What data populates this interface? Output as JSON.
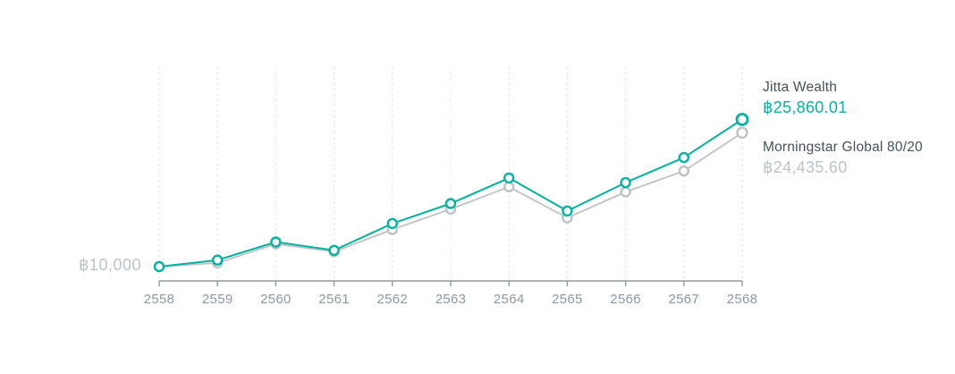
{
  "colors": {
    "teal": "#02b3a1",
    "series_gray": "#bfc1c3",
    "text_primary": "#47505a",
    "text_muted": "#bcc3c9",
    "axis_line": "#919aa3",
    "axis_text": "#8d97a3",
    "gridline": "#dadcde",
    "marker_fill": "#ffffff",
    "background": "#ffffff"
  },
  "chart_data": {
    "type": "line",
    "title": "",
    "x": [
      2558,
      2559,
      2560,
      2561,
      2562,
      2563,
      2564,
      2565,
      2566,
      2567,
      2568
    ],
    "series": [
      {
        "name": "Jitta Wealth",
        "color": "#02b3a1",
        "final_value": 25860.01,
        "final_value_label": "฿25,860.01",
        "values": [
          10000,
          10700,
          12650,
          11750,
          14650,
          16800,
          19550,
          16000,
          19050,
          21750,
          25860.01
        ]
      },
      {
        "name": "Morningstar Global 80/20",
        "color": "#bfc1c3",
        "final_value": 24435.6,
        "final_value_label": "฿24,435.60",
        "values": [
          10000,
          10400,
          12450,
          11600,
          14000,
          16200,
          18600,
          15250,
          18050,
          20300,
          24435.6
        ]
      }
    ],
    "y_axis": {
      "baseline_label": "฿10,000",
      "baseline_value": 10000
    },
    "ylim": [
      10000,
      26000
    ],
    "grid": "vertical-dashed",
    "legend_position": "right"
  }
}
